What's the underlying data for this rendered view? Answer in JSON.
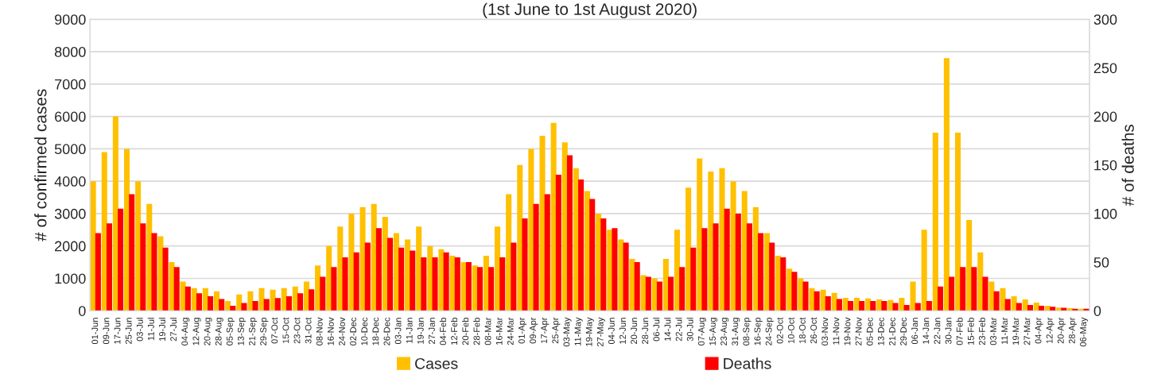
{
  "chart_data": {
    "type": "bar",
    "title": "(1st June to 1st August 2020)",
    "ylabel": "# of confirmed cases",
    "y2label": "# of deaths",
    "categories": [
      "01-Jun",
      "09-Jun",
      "17-Jun",
      "25-Jun",
      "03-Jul",
      "11-Jul",
      "19-Jul",
      "27-Jul",
      "04-Aug",
      "12-Aug",
      "20-Aug",
      "28-Aug",
      "05-Sep",
      "13-Sep",
      "21-Sep",
      "29-Sep",
      "07-Oct",
      "15-Oct",
      "23-Oct",
      "31-Oct",
      "08-Nov",
      "16-Nov",
      "24-Nov",
      "02-Dec",
      "10-Dec",
      "18-Dec",
      "26-Dec",
      "03-Jan",
      "11-Jan",
      "19-Jan",
      "27-Jan",
      "04-Feb",
      "12-Feb",
      "20-Feb",
      "28-Feb",
      "08-Mar",
      "16-Mar",
      "24-Mar",
      "01-Apr",
      "09-Apr",
      "17-Apr",
      "25-Apr",
      "03-May",
      "11-May",
      "19-May",
      "27-May",
      "04-Jun",
      "12-Jun",
      "20-Jun",
      "28-Jun",
      "06-Jul",
      "14-Jul",
      "22-Jul",
      "30-Jul",
      "07-Aug",
      "15-Aug",
      "23-Aug",
      "31-Aug",
      "08-Sep",
      "16-Sep",
      "24-Sep",
      "02-Oct",
      "10-Oct",
      "18-Oct",
      "26-Oct",
      "03-Nov",
      "11-Nov",
      "19-Nov",
      "27-Nov",
      "05-Dec",
      "13-Dec",
      "21-Dec",
      "29-Dec",
      "06-Jan",
      "14-Jan",
      "22-Jan",
      "30-Jan",
      "07-Feb",
      "15-Feb",
      "23-Feb",
      "03-Mar",
      "11-Mar",
      "19-Mar",
      "27-Mar",
      "04-Apr",
      "12-Apr",
      "20-Apr",
      "28-Apr",
      "06-May"
    ],
    "series": [
      {
        "name": "Cases",
        "color": "#ffc000",
        "values": [
          4000,
          4900,
          6000,
          5000,
          4000,
          3300,
          2300,
          1500,
          900,
          700,
          700,
          600,
          300,
          500,
          600,
          700,
          650,
          700,
          750,
          900,
          1400,
          2000,
          2600,
          3000,
          3200,
          3300,
          2900,
          2400,
          2200,
          2600,
          2000,
          1900,
          1700,
          1500,
          1400,
          1700,
          2600,
          3600,
          4500,
          5000,
          5400,
          5800,
          5200,
          4400,
          3700,
          3000,
          2500,
          2200,
          1600,
          1100,
          1000,
          1600,
          2500,
          3800,
          4700,
          4300,
          4400,
          4000,
          3700,
          3200,
          2400,
          1700,
          1300,
          1000,
          700,
          650,
          550,
          400,
          400,
          380,
          350,
          330,
          400,
          900,
          2500,
          5500,
          7800,
          5500,
          2800,
          1800,
          900,
          700,
          450,
          350,
          250,
          150,
          100,
          80,
          60
        ]
      },
      {
        "name": "Deaths",
        "color": "#ff0000",
        "axis": "y2",
        "values": [
          80,
          90,
          105,
          120,
          90,
          80,
          65,
          45,
          25,
          18,
          15,
          12,
          5,
          8,
          10,
          12,
          13,
          15,
          18,
          22,
          35,
          45,
          55,
          60,
          70,
          85,
          75,
          65,
          62,
          55,
          55,
          60,
          55,
          50,
          45,
          45,
          55,
          70,
          95,
          110,
          120,
          140,
          160,
          135,
          115,
          95,
          85,
          70,
          50,
          35,
          30,
          35,
          45,
          65,
          85,
          90,
          105,
          100,
          90,
          80,
          70,
          55,
          40,
          30,
          20,
          15,
          12,
          10,
          10,
          10,
          10,
          8,
          6,
          8,
          10,
          25,
          35,
          45,
          45,
          35,
          20,
          12,
          8,
          6,
          5,
          4,
          3,
          2,
          2
        ]
      }
    ],
    "ylim": [
      0,
      9000
    ],
    "yticks": [
      0,
      1000,
      2000,
      3000,
      4000,
      5000,
      6000,
      7000,
      8000,
      9000
    ],
    "y2lim": [
      0,
      300
    ],
    "y2ticks": [
      0,
      50,
      100,
      150,
      200,
      250,
      300
    ],
    "grid": "y",
    "legend": "bottom"
  }
}
